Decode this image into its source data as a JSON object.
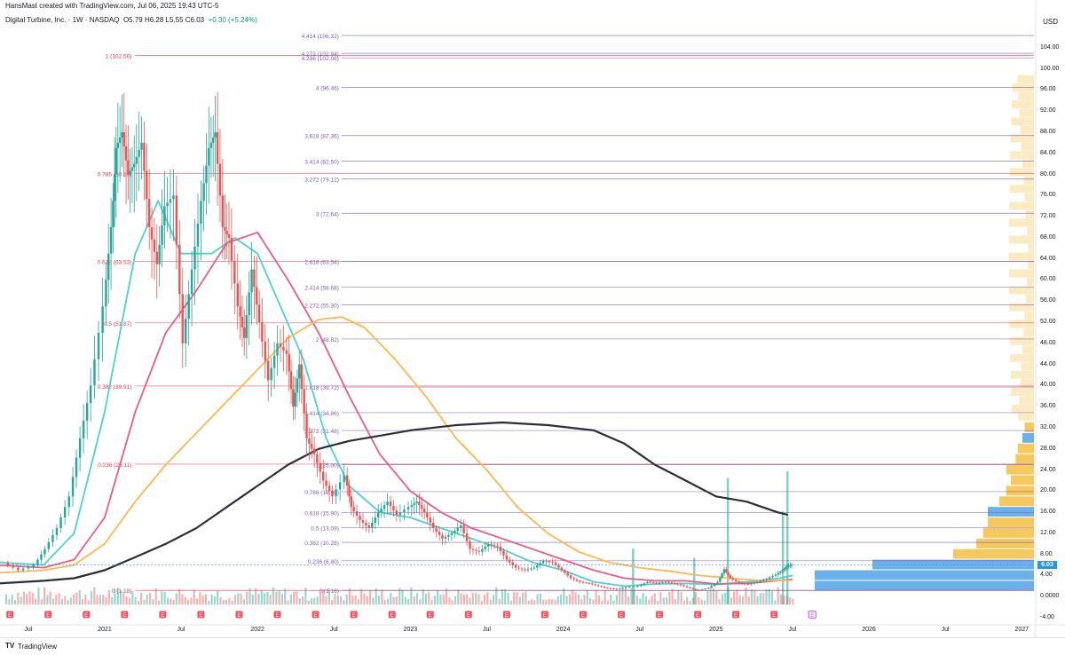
{
  "header": {
    "attribution": "HansMast created with TradingView.com, Jul 06, 2025 19:43 UTC-5",
    "symbol": "Digital Turbine, Inc. · 1W · NASDAQ",
    "ohlc": "O5.79 H6.28 L5.55 C6.03",
    "change": "+0.30 (+5.24%)",
    "currency": "USD"
  },
  "footer": {
    "brand": "TradingView",
    "logo": "TV"
  },
  "colors": {
    "up": "#26a69a",
    "down": "#ef5350",
    "fib_red": "#f23645",
    "fib_purple": "#7e57c2",
    "ma_cyan": "#4dd0d4",
    "ma_pink": "#ec5b88",
    "ma_orange": "#ffb74d",
    "ma_black": "#2a2e39",
    "price_badge": "#2196f3",
    "vp_blue": "#5aa7e8",
    "vp_yellow": "#f5c34e"
  },
  "chart_data": {
    "type": "candlestick",
    "title": "Digital Turbine, Inc. · 1W · NASDAQ",
    "y_axis": {
      "ticks": [
        "104.00",
        "100.00",
        "96.00",
        "92.00",
        "88.00",
        "84.00",
        "80.00",
        "76.00",
        "72.00",
        "68.00",
        "64.00",
        "60.00",
        "56.00",
        "52.00",
        "48.00",
        "44.00",
        "40.00",
        "36.00",
        "32.00",
        "28.00",
        "24.00",
        "20.00",
        "16.00",
        "12.00",
        "8.00",
        "4.00",
        "0.0000",
        "-4.00"
      ],
      "range": [
        -5,
        108
      ]
    },
    "x_axis": {
      "ticks": [
        "Jul",
        "2021",
        "Jul",
        "2022",
        "Jul",
        "2023",
        "Jul",
        "2024",
        "Jul",
        "2025",
        "Jul",
        "2026",
        "Jul",
        "2027"
      ],
      "tick_dates": [
        2020.5,
        2021.0,
        2021.5,
        2022.0,
        2022.5,
        2023.0,
        2023.5,
        2024.0,
        2024.5,
        2025.0,
        2025.5,
        2026.0,
        2026.5,
        2027.0
      ]
    },
    "last_price": "6.03",
    "fib_retracement": [
      {
        "label": "1 (102.56)",
        "value": 102.56
      },
      {
        "label": "0.786 (80.16)",
        "value": 80.16
      },
      {
        "label": "0.618 (63.53)",
        "value": 63.53
      },
      {
        "label": "0.5 (51.87)",
        "value": 51.87
      },
      {
        "label": "0.382 (39.91)",
        "value": 39.91
      },
      {
        "label": "0.236 (25.11)",
        "value": 25.11
      },
      {
        "label": "0 (1.18)",
        "value": 1.18
      }
    ],
    "fib_extension": [
      {
        "label": "4.414 (106.32)",
        "value": 106.32
      },
      {
        "label": "4.272 (102.94)",
        "value": 102.94
      },
      {
        "label": "4.236 (102.08)",
        "value": 102.08
      },
      {
        "label": "4 (96.46)",
        "value": 96.46
      },
      {
        "label": "3.618 (87.36)",
        "value": 87.36
      },
      {
        "label": "3.414 (82.50)",
        "value": 82.5
      },
      {
        "label": "3.272 (79.12)",
        "value": 79.12
      },
      {
        "label": "3 (72.64)",
        "value": 72.64
      },
      {
        "label": "2.618 (63.54)",
        "value": 63.54
      },
      {
        "label": "2.414 (58.68)",
        "value": 58.68
      },
      {
        "label": "2.272 (55.30)",
        "value": 55.3
      },
      {
        "label": "2 (48.82)",
        "value": 48.82
      },
      {
        "label": "1.618 (39.72)",
        "value": 39.72
      },
      {
        "label": "1.414 (34.86)",
        "value": 34.86
      },
      {
        "label": "1.272 (31.48)",
        "value": 31.48
      },
      {
        "label": "1 (25.00)",
        "value": 25.0
      },
      {
        "label": "0.786 (19.90)",
        "value": 19.9
      },
      {
        "label": "0.618 (15.90)",
        "value": 15.9
      },
      {
        "label": "0.5 (13.09)",
        "value": 13.09
      },
      {
        "label": "0.382 (10.28)",
        "value": 10.28
      },
      {
        "label": "0.236 (6.80)",
        "value": 6.8
      },
      {
        "label": "0 (1.18)",
        "value": 1.18
      }
    ],
    "price_path": [
      {
        "t": 2020.35,
        "p": 6.5
      },
      {
        "t": 2020.45,
        "p": 5.0
      },
      {
        "t": 2020.55,
        "p": 6.0
      },
      {
        "t": 2020.62,
        "p": 9.0
      },
      {
        "t": 2020.7,
        "p": 13.0
      },
      {
        "t": 2020.78,
        "p": 19.0
      },
      {
        "t": 2020.85,
        "p": 30.0
      },
      {
        "t": 2020.92,
        "p": 40.0
      },
      {
        "t": 2021.0,
        "p": 55.0
      },
      {
        "t": 2021.05,
        "p": 70.0
      },
      {
        "t": 2021.08,
        "p": 85.0
      },
      {
        "t": 2021.12,
        "p": 88.0
      },
      {
        "t": 2021.16,
        "p": 80.0
      },
      {
        "t": 2021.2,
        "p": 82.0
      },
      {
        "t": 2021.25,
        "p": 86.0
      },
      {
        "t": 2021.3,
        "p": 70.0
      },
      {
        "t": 2021.35,
        "p": 63.0
      },
      {
        "t": 2021.4,
        "p": 74.0
      },
      {
        "t": 2021.46,
        "p": 76.0
      },
      {
        "t": 2021.52,
        "p": 48.0
      },
      {
        "t": 2021.58,
        "p": 62.0
      },
      {
        "t": 2021.64,
        "p": 75.0
      },
      {
        "t": 2021.69,
        "p": 85.0
      },
      {
        "t": 2021.73,
        "p": 88.0
      },
      {
        "t": 2021.78,
        "p": 70.0
      },
      {
        "t": 2021.82,
        "p": 68.0
      },
      {
        "t": 2021.88,
        "p": 55.0
      },
      {
        "t": 2021.92,
        "p": 49.0
      },
      {
        "t": 2021.97,
        "p": 62.0
      },
      {
        "t": 2022.02,
        "p": 52.0
      },
      {
        "t": 2022.08,
        "p": 41.0
      },
      {
        "t": 2022.14,
        "p": 48.0
      },
      {
        "t": 2022.2,
        "p": 46.0
      },
      {
        "t": 2022.24,
        "p": 36.0
      },
      {
        "t": 2022.28,
        "p": 44.0
      },
      {
        "t": 2022.33,
        "p": 30.0
      },
      {
        "t": 2022.38,
        "p": 27.0
      },
      {
        "t": 2022.44,
        "p": 22.0
      },
      {
        "t": 2022.5,
        "p": 19.0
      },
      {
        "t": 2022.58,
        "p": 23.0
      },
      {
        "t": 2022.62,
        "p": 17.0
      },
      {
        "t": 2022.68,
        "p": 14.5
      },
      {
        "t": 2022.74,
        "p": 13.0
      },
      {
        "t": 2022.8,
        "p": 16.0
      },
      {
        "t": 2022.86,
        "p": 18.0
      },
      {
        "t": 2022.92,
        "p": 15.5
      },
      {
        "t": 2023.0,
        "p": 17.0
      },
      {
        "t": 2023.05,
        "p": 18.0
      },
      {
        "t": 2023.1,
        "p": 16.0
      },
      {
        "t": 2023.16,
        "p": 13.0
      },
      {
        "t": 2023.22,
        "p": 11.0
      },
      {
        "t": 2023.28,
        "p": 12.0
      },
      {
        "t": 2023.34,
        "p": 13.5
      },
      {
        "t": 2023.4,
        "p": 9.0
      },
      {
        "t": 2023.46,
        "p": 8.5
      },
      {
        "t": 2023.52,
        "p": 10.0
      },
      {
        "t": 2023.58,
        "p": 9.5
      },
      {
        "t": 2023.64,
        "p": 7.0
      },
      {
        "t": 2023.7,
        "p": 5.5
      },
      {
        "t": 2023.76,
        "p": 5.0
      },
      {
        "t": 2023.82,
        "p": 5.5
      },
      {
        "t": 2023.88,
        "p": 6.8
      },
      {
        "t": 2023.94,
        "p": 6.5
      },
      {
        "t": 2024.0,
        "p": 5.0
      },
      {
        "t": 2024.06,
        "p": 3.5
      },
      {
        "t": 2024.12,
        "p": 2.8
      },
      {
        "t": 2024.18,
        "p": 2.5
      },
      {
        "t": 2024.24,
        "p": 2.0
      },
      {
        "t": 2024.3,
        "p": 1.6
      },
      {
        "t": 2024.36,
        "p": 1.5
      },
      {
        "t": 2024.42,
        "p": 1.8
      },
      {
        "t": 2024.5,
        "p": 2.0
      },
      {
        "t": 2024.56,
        "p": 2.8
      },
      {
        "t": 2024.62,
        "p": 2.6
      },
      {
        "t": 2024.68,
        "p": 2.8
      },
      {
        "t": 2024.74,
        "p": 2.5
      },
      {
        "t": 2024.8,
        "p": 2.0
      },
      {
        "t": 2024.86,
        "p": 1.4
      },
      {
        "t": 2024.9,
        "p": 1.2
      },
      {
        "t": 2024.96,
        "p": 1.7
      },
      {
        "t": 2025.02,
        "p": 2.8
      },
      {
        "t": 2025.06,
        "p": 5.2
      },
      {
        "t": 2025.1,
        "p": 3.5
      },
      {
        "t": 2025.16,
        "p": 2.6
      },
      {
        "t": 2025.22,
        "p": 2.3
      },
      {
        "t": 2025.28,
        "p": 2.8
      },
      {
        "t": 2025.34,
        "p": 3.4
      },
      {
        "t": 2025.4,
        "p": 4.2
      },
      {
        "t": 2025.44,
        "p": 5.0
      },
      {
        "t": 2025.47,
        "p": 5.8
      },
      {
        "t": 2025.5,
        "p": 6.03
      }
    ],
    "moving_averages": [
      {
        "color_key": "ma_cyan",
        "points": [
          {
            "t": 2020.3,
            "p": 6.5
          },
          {
            "t": 2020.6,
            "p": 6.0
          },
          {
            "t": 2020.8,
            "p": 12.0
          },
          {
            "t": 2021.0,
            "p": 35.0
          },
          {
            "t": 2021.2,
            "p": 65.0
          },
          {
            "t": 2021.35,
            "p": 75.0
          },
          {
            "t": 2021.5,
            "p": 65.0
          },
          {
            "t": 2021.7,
            "p": 65.0
          },
          {
            "t": 2021.85,
            "p": 68.0
          },
          {
            "t": 2022.0,
            "p": 65.0
          },
          {
            "t": 2022.15,
            "p": 55.0
          },
          {
            "t": 2022.3,
            "p": 45.0
          },
          {
            "t": 2022.45,
            "p": 30.0
          },
          {
            "t": 2022.6,
            "p": 21.0
          },
          {
            "t": 2022.8,
            "p": 16.0
          },
          {
            "t": 2023.0,
            "p": 15.0
          },
          {
            "t": 2023.2,
            "p": 13.0
          },
          {
            "t": 2023.4,
            "p": 11.0
          },
          {
            "t": 2023.6,
            "p": 9.0
          },
          {
            "t": 2023.8,
            "p": 6.5
          },
          {
            "t": 2024.0,
            "p": 5.0
          },
          {
            "t": 2024.2,
            "p": 2.8
          },
          {
            "t": 2024.4,
            "p": 2.0
          },
          {
            "t": 2024.6,
            "p": 2.4
          },
          {
            "t": 2024.8,
            "p": 2.5
          },
          {
            "t": 2025.0,
            "p": 2.3
          },
          {
            "t": 2025.2,
            "p": 2.8
          },
          {
            "t": 2025.4,
            "p": 3.4
          },
          {
            "t": 2025.5,
            "p": 4.0
          }
        ]
      },
      {
        "color_key": "ma_pink",
        "points": [
          {
            "t": 2020.3,
            "p": 6.0
          },
          {
            "t": 2020.6,
            "p": 5.5
          },
          {
            "t": 2020.8,
            "p": 7.0
          },
          {
            "t": 2021.0,
            "p": 15.0
          },
          {
            "t": 2021.2,
            "p": 35.0
          },
          {
            "t": 2021.4,
            "p": 50.0
          },
          {
            "t": 2021.6,
            "p": 58.0
          },
          {
            "t": 2021.8,
            "p": 67.0
          },
          {
            "t": 2022.0,
            "p": 69.0
          },
          {
            "t": 2022.2,
            "p": 60.0
          },
          {
            "t": 2022.4,
            "p": 50.0
          },
          {
            "t": 2022.6,
            "p": 38.0
          },
          {
            "t": 2022.8,
            "p": 27.0
          },
          {
            "t": 2023.0,
            "p": 20.0
          },
          {
            "t": 2023.2,
            "p": 16.0
          },
          {
            "t": 2023.4,
            "p": 13.0
          },
          {
            "t": 2023.6,
            "p": 11.0
          },
          {
            "t": 2023.8,
            "p": 9.0
          },
          {
            "t": 2024.0,
            "p": 7.0
          },
          {
            "t": 2024.2,
            "p": 5.0
          },
          {
            "t": 2024.4,
            "p": 3.5
          },
          {
            "t": 2024.6,
            "p": 3.0
          },
          {
            "t": 2024.8,
            "p": 3.0
          },
          {
            "t": 2025.0,
            "p": 2.4
          },
          {
            "t": 2025.2,
            "p": 2.5
          },
          {
            "t": 2025.4,
            "p": 3.0
          },
          {
            "t": 2025.5,
            "p": 3.3
          }
        ]
      },
      {
        "color_key": "ma_orange",
        "points": [
          {
            "t": 2020.3,
            "p": 4.5
          },
          {
            "t": 2020.6,
            "p": 5.0
          },
          {
            "t": 2020.8,
            "p": 6.0
          },
          {
            "t": 2021.0,
            "p": 10.0
          },
          {
            "t": 2021.2,
            "p": 18.0
          },
          {
            "t": 2021.4,
            "p": 25.0
          },
          {
            "t": 2021.6,
            "p": 31.0
          },
          {
            "t": 2021.8,
            "p": 37.0
          },
          {
            "t": 2022.0,
            "p": 43.0
          },
          {
            "t": 2022.2,
            "p": 49.0
          },
          {
            "t": 2022.4,
            "p": 52.5
          },
          {
            "t": 2022.55,
            "p": 53.0
          },
          {
            "t": 2022.7,
            "p": 51.0
          },
          {
            "t": 2022.9,
            "p": 45.0
          },
          {
            "t": 2023.1,
            "p": 38.0
          },
          {
            "t": 2023.3,
            "p": 30.0
          },
          {
            "t": 2023.5,
            "p": 24.0
          },
          {
            "t": 2023.7,
            "p": 17.0
          },
          {
            "t": 2023.9,
            "p": 12.0
          },
          {
            "t": 2024.1,
            "p": 8.5
          },
          {
            "t": 2024.3,
            "p": 6.5
          },
          {
            "t": 2024.5,
            "p": 5.5
          },
          {
            "t": 2024.7,
            "p": 4.8
          },
          {
            "t": 2024.9,
            "p": 4.0
          },
          {
            "t": 2025.1,
            "p": 3.5
          },
          {
            "t": 2025.3,
            "p": 3.0
          },
          {
            "t": 2025.5,
            "p": 3.1
          }
        ]
      },
      {
        "color_key": "ma_black",
        "points": [
          {
            "t": 2020.3,
            "p": 2.5
          },
          {
            "t": 2020.6,
            "p": 3.0
          },
          {
            "t": 2020.8,
            "p": 3.5
          },
          {
            "t": 2021.0,
            "p": 5.0
          },
          {
            "t": 2021.2,
            "p": 7.5
          },
          {
            "t": 2021.4,
            "p": 10.0
          },
          {
            "t": 2021.6,
            "p": 13.0
          },
          {
            "t": 2021.8,
            "p": 17.0
          },
          {
            "t": 2022.0,
            "p": 21.0
          },
          {
            "t": 2022.2,
            "p": 25.0
          },
          {
            "t": 2022.4,
            "p": 28.0
          },
          {
            "t": 2022.6,
            "p": 29.5
          },
          {
            "t": 2022.8,
            "p": 30.5
          },
          {
            "t": 2023.0,
            "p": 31.5
          },
          {
            "t": 2023.3,
            "p": 32.5
          },
          {
            "t": 2023.6,
            "p": 33.0
          },
          {
            "t": 2023.9,
            "p": 32.5
          },
          {
            "t": 2024.2,
            "p": 31.5
          },
          {
            "t": 2024.4,
            "p": 29.0
          },
          {
            "t": 2024.6,
            "p": 25.0
          },
          {
            "t": 2024.8,
            "p": 22.0
          },
          {
            "t": 2025.0,
            "p": 19.0
          },
          {
            "t": 2025.2,
            "p": 18.0
          },
          {
            "t": 2025.4,
            "p": 16.0
          },
          {
            "t": 2025.47,
            "p": 15.5
          }
        ]
      }
    ],
    "volume_spikes": [
      {
        "t": 2024.45,
        "v": 0.42
      },
      {
        "t": 2024.85,
        "v": 0.35
      },
      {
        "t": 2025.07,
        "v": 0.95
      },
      {
        "t": 2025.43,
        "v": 0.7
      },
      {
        "t": 2025.46,
        "v": 1.0
      }
    ],
    "volume_profile": [
      {
        "p": 2,
        "w": 0.95,
        "color_key": "vp_blue"
      },
      {
        "p": 4,
        "w": 0.95,
        "color_key": "vp_blue"
      },
      {
        "p": 6,
        "w": 0.7,
        "color_key": "vp_blue"
      },
      {
        "p": 8,
        "w": 0.35,
        "color_key": "vp_yellow"
      },
      {
        "p": 10,
        "w": 0.25,
        "color_key": "vp_yellow"
      },
      {
        "p": 12,
        "w": 0.22,
        "color_key": "vp_yellow"
      },
      {
        "p": 14,
        "w": 0.2,
        "color_key": "vp_yellow"
      },
      {
        "p": 16,
        "w": 0.2,
        "color_key": "vp_blue"
      },
      {
        "p": 18,
        "w": 0.15,
        "color_key": "vp_yellow"
      },
      {
        "p": 20,
        "w": 0.12,
        "color_key": "vp_yellow"
      },
      {
        "p": 22,
        "w": 0.1,
        "color_key": "vp_yellow"
      },
      {
        "p": 24,
        "w": 0.12,
        "color_key": "vp_yellow"
      },
      {
        "p": 26,
        "w": 0.08,
        "color_key": "vp_yellow"
      },
      {
        "p": 28,
        "w": 0.07,
        "color_key": "vp_yellow"
      },
      {
        "p": 30,
        "w": 0.05,
        "color_key": "vp_blue"
      },
      {
        "p": 32,
        "w": 0.04,
        "color_key": "vp_yellow"
      }
    ],
    "markers": {
      "current_label": "E"
    }
  }
}
